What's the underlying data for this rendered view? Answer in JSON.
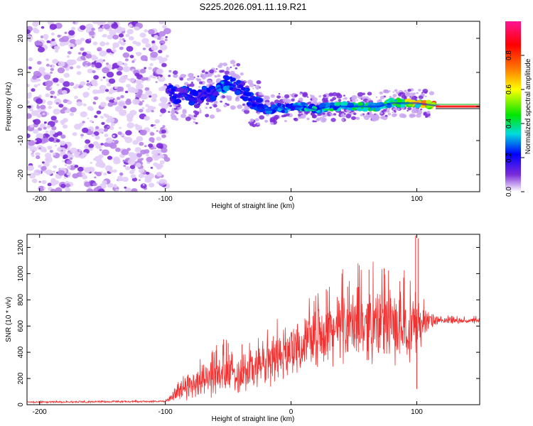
{
  "figure_title": "S225.2026.091.11.19.R21",
  "chart_data": [
    {
      "type": "heatmap",
      "name": "spectrogram",
      "xlabel": "Height of straight line (km)",
      "ylabel": "Frequency (Hz)",
      "xlim": [
        -210,
        150
      ],
      "ylim": [
        -25,
        25
      ],
      "xticks": [
        -200,
        -100,
        0,
        100
      ],
      "yticks": [
        20,
        10,
        0,
        -10,
        -20
      ],
      "colorbar": {
        "label": "Normalized spectral amplitude",
        "range": [
          0,
          1
        ],
        "ticks": [
          0.0,
          0.2,
          0.4,
          0.6,
          0.8
        ],
        "tick_labels": [
          "0.0",
          "0.2",
          "0.4",
          "0.6",
          "0.8"
        ],
        "colormap": [
          "#ffffff",
          "#7b2bd9",
          "#0000ff",
          "#00dcdc",
          "#00e600",
          "#ffff00",
          "#ff7a00",
          "#ff0000",
          "#ff1493"
        ]
      },
      "ridge_frequency_hz": {
        "x_km": [
          -100,
          -95,
          -90,
          -85,
          -80,
          -75,
          -70,
          -65,
          -60,
          -55,
          -50,
          -45,
          -40,
          -35,
          -30,
          -25,
          -20,
          -15,
          -10,
          -5,
          0,
          10,
          20,
          30,
          40,
          50,
          60,
          70,
          80,
          90,
          100,
          110,
          120,
          130,
          140,
          150
        ],
        "freq_hz": [
          5,
          4,
          3,
          4,
          3,
          2,
          4,
          3,
          5,
          6,
          7,
          6,
          5,
          3,
          1,
          0,
          -1,
          -1,
          0,
          -1,
          0,
          0,
          -1,
          0,
          0,
          0,
          0,
          0,
          1,
          1,
          1,
          0.5,
          0,
          0,
          0,
          0
        ],
        "amplitude": [
          0.3,
          0.3,
          0.25,
          0.3,
          0.28,
          0.25,
          0.3,
          0.28,
          0.3,
          0.35,
          0.35,
          0.3,
          0.3,
          0.28,
          0.3,
          0.3,
          0.35,
          0.35,
          0.4,
          0.4,
          0.4,
          0.45,
          0.45,
          0.5,
          0.5,
          0.5,
          0.55,
          0.55,
          0.6,
          0.65,
          0.7,
          0.8,
          0.9,
          0.95,
          0.95,
          0.95
        ]
      },
      "noise_region_km": [
        -210,
        -98
      ]
    },
    {
      "type": "line",
      "name": "snr",
      "xlabel": "Height of straight line (km)",
      "ylabel": "SNR (10 * v/v)",
      "xlim": [
        -210,
        150
      ],
      "ylim": [
        0,
        1300
      ],
      "xticks": [
        -200,
        -100,
        0,
        100
      ],
      "yticks": [
        0,
        200,
        400,
        600,
        800,
        1000,
        1200
      ],
      "line_color": "#f23030",
      "envelope": {
        "x_km": [
          -210,
          -100,
          -95,
          -90,
          -80,
          -70,
          -60,
          -50,
          -40,
          -30,
          -20,
          -10,
          0,
          10,
          20,
          30,
          40,
          50,
          60,
          70,
          80,
          90,
          95,
          100,
          105,
          110,
          120,
          130,
          140,
          150
        ],
        "mean": [
          20,
          25,
          60,
          100,
          160,
          190,
          220,
          230,
          250,
          280,
          320,
          370,
          420,
          470,
          520,
          560,
          590,
          600,
          620,
          620,
          600,
          600,
          600,
          620,
          630,
          640,
          640,
          640,
          640,
          640
        ],
        "amp": [
          8,
          8,
          40,
          90,
          130,
          160,
          170,
          190,
          200,
          220,
          240,
          250,
          200,
          220,
          250,
          280,
          300,
          310,
          330,
          320,
          320,
          300,
          300,
          320,
          150,
          80,
          30,
          25,
          25,
          25
        ]
      },
      "spikes": [
        {
          "x_km": -50,
          "y": 470
        },
        {
          "x_km": -39,
          "y": 460
        },
        {
          "x_km": 28,
          "y": 880
        },
        {
          "x_km": 45,
          "y": 900
        },
        {
          "x_km": 62,
          "y": 1030
        },
        {
          "x_km": 74,
          "y": 1040
        },
        {
          "x_km": 99,
          "y": 1290
        },
        {
          "x_km": 101,
          "y": 1270
        },
        {
          "x_km": 100,
          "y": 120
        }
      ]
    }
  ]
}
